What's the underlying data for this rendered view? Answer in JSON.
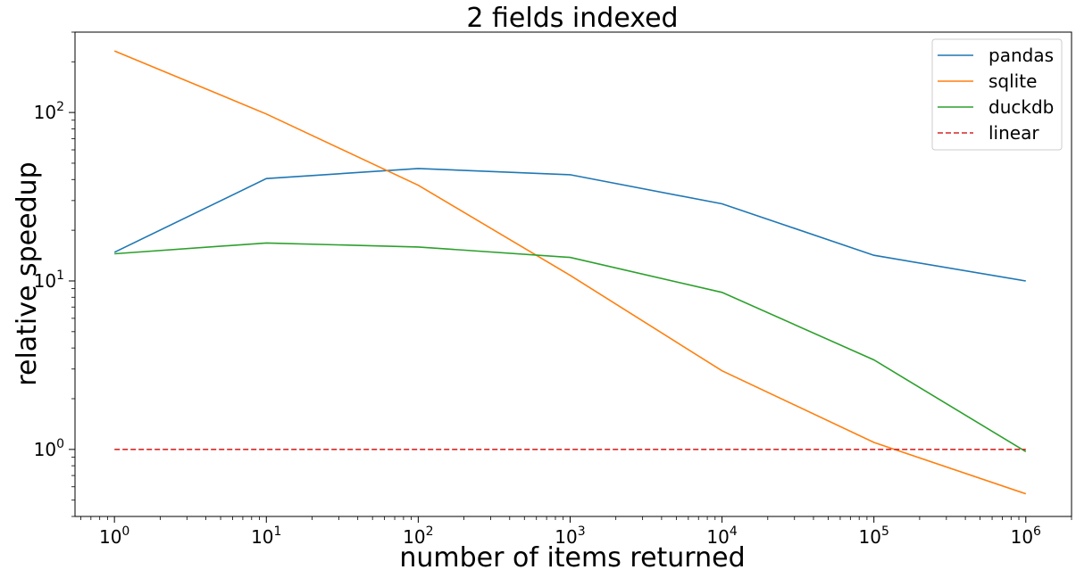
{
  "chart_data": {
    "type": "line",
    "title": "2 fields indexed",
    "xlabel": "number of items returned",
    "ylabel": "relative speedup",
    "xscale": "log",
    "yscale": "log",
    "xlim": [
      0.55,
      2000000
    ],
    "ylim": [
      0.4,
      300
    ],
    "grid": false,
    "legend_position": "top-right",
    "x": [
      1,
      10,
      100,
      1000,
      10000,
      100000,
      1000000
    ],
    "x_tick_labels": [
      {
        "base": "10",
        "exp": "0"
      },
      {
        "base": "10",
        "exp": "1"
      },
      {
        "base": "10",
        "exp": "2"
      },
      {
        "base": "10",
        "exp": "3"
      },
      {
        "base": "10",
        "exp": "4"
      },
      {
        "base": "10",
        "exp": "5"
      },
      {
        "base": "10",
        "exp": "6"
      }
    ],
    "y_tick_labels": [
      {
        "value": 1,
        "base": "10",
        "exp": "0"
      },
      {
        "value": 10,
        "base": "10",
        "exp": "1"
      },
      {
        "value": 100,
        "base": "10",
        "exp": "2"
      }
    ],
    "series": [
      {
        "name": "pandas",
        "color": "#1f77b4",
        "dashed": false,
        "values": [
          14.8,
          40.5,
          46.5,
          42.7,
          28.7,
          14.2,
          10.0
        ]
      },
      {
        "name": "sqlite",
        "color": "#ff7f0e",
        "dashed": false,
        "values": [
          232,
          98,
          37,
          10.8,
          2.93,
          1.1,
          0.545
        ]
      },
      {
        "name": "duckdb",
        "color": "#2ca02c",
        "dashed": false,
        "values": [
          14.5,
          16.8,
          15.9,
          13.8,
          8.55,
          3.4,
          0.97
        ]
      },
      {
        "name": "linear",
        "color": "#d62728",
        "dashed": true,
        "values": [
          1,
          1,
          1,
          1,
          1,
          1,
          1
        ]
      }
    ]
  }
}
